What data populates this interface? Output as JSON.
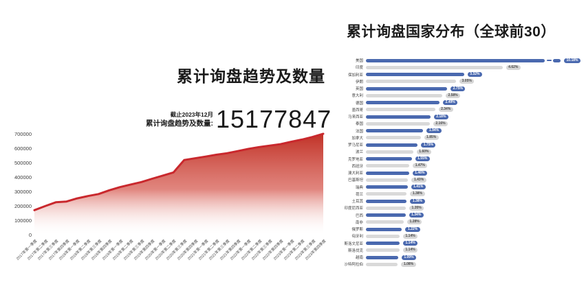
{
  "left_chart": {
    "title": "累计询盘趋势及数量",
    "asof_label": "截止2023年12月",
    "total_label": "累计询盘趋势及数量:",
    "total_value": "15177847",
    "colors": {
      "line": "#c9282d",
      "gradient_top": "#c13227",
      "gradient_mid": "#d9675e",
      "gradient_bottom": "#ffffff",
      "axis_text": "#3c3c3c"
    }
  },
  "right_chart": {
    "title": "累计询盘国家分布（全球前30）",
    "colors": {
      "bar_primary": "#4a69af",
      "bar_secondary": "#d9d9d9",
      "badge_primary_bg": "#4a69af",
      "badge_primary_text": "#ffffff",
      "badge_secondary_bg": "#d6d6d6",
      "badge_secondary_text": "#4a4a4a"
    }
  },
  "chart_data": [
    {
      "type": "area",
      "title": "累计询盘趋势及数量",
      "xlabel": "",
      "ylabel": "",
      "ylim": [
        0,
        700000
      ],
      "yticks": [
        0,
        100000,
        200000,
        300000,
        400000,
        500000,
        600000,
        700000
      ],
      "grid": false,
      "x": [
        "2017年第一季度",
        "2017年第二季度",
        "2017年第三季度",
        "2017年第四季度",
        "2018年第一季度",
        "2018年第二季度",
        "2018年第三季度",
        "2018年第四季度",
        "2019年第一季度",
        "2019年第二季度",
        "2019年第三季度",
        "2019年第四季度",
        "2020年第一季度",
        "2020年第二季度",
        "2020年第三季度",
        "2020年第四季度",
        "2021年第一季度",
        "2021年第二季度",
        "2021年第三季度",
        "2021年第四季度",
        "2022年第一季度",
        "2022年第二季度",
        "2022年第三季度",
        "2022年第四季度",
        "2023年第一季度",
        "2023年第二季度",
        "2023年第三季度",
        "2023年第四季度"
      ],
      "values": [
        170000,
        198000,
        225000,
        230000,
        252000,
        268000,
        282000,
        308000,
        330000,
        348000,
        365000,
        388000,
        410000,
        432000,
        518000,
        530000,
        542000,
        555000,
        565000,
        580000,
        595000,
        608000,
        618000,
        628000,
        645000,
        660000,
        678000,
        700000
      ]
    },
    {
      "type": "bar",
      "orientation": "horizontal",
      "title": "累计询盘国家分布（全球前30）",
      "unit": "percent",
      "truncated_first_bar": true,
      "xlim_display": [
        0,
        6.2
      ],
      "categories": [
        "美国",
        "印度",
        "保加利亚",
        "伊朗",
        "英国",
        "意大利",
        "德国",
        "墨西哥",
        "马来西亚",
        "泰国",
        "法国",
        "加拿大",
        "罗马尼亚",
        "波兰",
        "克罗地亚",
        "西班牙",
        "澳大利亚",
        "巴基斯坦",
        "瑞典",
        "荷兰",
        "土耳其",
        "印度尼西亚",
        "巴西",
        "南非",
        "俄罗斯",
        "匈牙利",
        "斯洛文尼亚",
        "斯洛伐克",
        "越南",
        "沙特阿拉伯"
      ],
      "values": [
        10.18,
        4.62,
        3.32,
        3.05,
        2.75,
        2.58,
        2.49,
        2.34,
        2.18,
        2.16,
        1.94,
        1.85,
        1.75,
        1.6,
        1.55,
        1.47,
        1.46,
        1.43,
        1.41,
        1.38,
        1.38,
        1.35,
        1.34,
        1.28,
        1.22,
        1.14,
        1.14,
        1.14,
        1.09,
        1.08
      ],
      "value_labels": [
        "10.18%",
        "4.62%",
        "3.32%",
        "3.05%",
        "2.75%",
        "2.58%",
        "2.49%",
        "2.34%",
        "2.18%",
        "2.16%",
        "1.94%",
        "1.85%",
        "1.75%",
        "1.60%",
        "1.55%",
        "1.47%",
        "1.46%",
        "1.43%",
        "1.41%",
        "1.38%",
        "1.38%",
        "1.35%",
        "1.34%",
        "1.28%",
        "1.22%",
        "1.14%",
        "1.14%",
        "1.14%",
        "1.09%",
        "1.08%"
      ]
    }
  ]
}
